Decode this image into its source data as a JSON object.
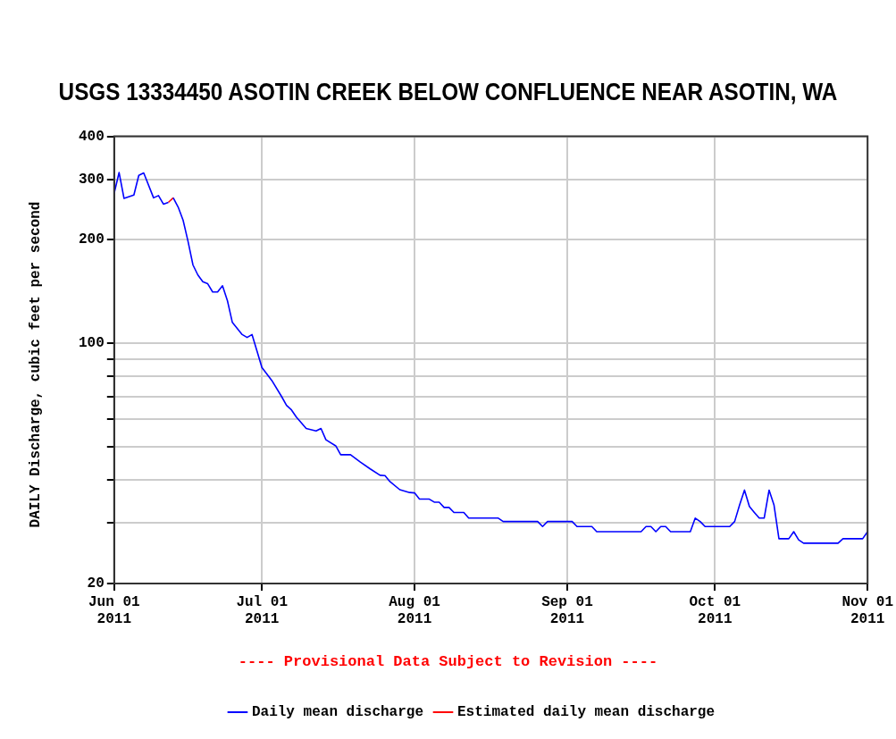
{
  "chart_data": {
    "type": "line",
    "title": "USGS 13334450 ASOTIN CREEK BELOW CONFLUENCE NEAR ASOTIN, WA",
    "ylabel": "DAILY Discharge, cubic feet per second",
    "annotations": [
      "---- Provisional Data Subject to Revision ----"
    ],
    "log": "y",
    "grid": true,
    "legend": "bottom",
    "marker": "none",
    "line_style": "solid",
    "xlim": [
      "2011-06-01",
      "2011-11-01"
    ],
    "xticks": [
      {
        "value": "2011-06-01",
        "label": "Jun 01 2011"
      },
      {
        "value": "2011-07-01",
        "label": "Jul 01 2011"
      },
      {
        "value": "2011-08-01",
        "label": "Aug 01 2011"
      },
      {
        "value": "2011-09-01",
        "label": "Sep 01 2011"
      },
      {
        "value": "2011-10-01",
        "label": "Oct 01 2011"
      },
      {
        "value": "2011-11-01",
        "label": "Nov 01 2011"
      }
    ],
    "ylim": [
      20,
      400
    ],
    "yticks": [
      20,
      {
        "value": 30,
        "label": null
      },
      {
        "value": 40,
        "label": null
      },
      {
        "value": 50,
        "label": null
      },
      {
        "value": 60,
        "label": null
      },
      {
        "value": 70,
        "label": null
      },
      {
        "value": 80,
        "label": null
      },
      {
        "value": 90,
        "label": null
      },
      100,
      200,
      300,
      400
    ],
    "series": [
      {
        "name": "Daily mean discharge",
        "color": "#0000ff",
        "x": [
          "2011-06-01",
          "2011-06-02",
          "2011-06-03",
          "2011-06-05",
          "2011-06-06",
          "2011-06-07",
          "2011-06-09",
          "2011-06-10",
          "2011-06-11",
          "2011-06-12",
          "2011-06-13",
          "2011-06-14",
          "2011-06-15",
          "2011-06-16",
          "2011-06-17",
          "2011-06-18",
          "2011-06-19",
          "2011-06-20",
          "2011-06-21",
          "2011-06-22",
          "2011-06-23",
          "2011-06-24",
          "2011-06-25",
          "2011-06-27",
          "2011-06-28",
          "2011-06-29",
          "2011-06-30",
          "2011-07-01",
          "2011-07-03",
          "2011-07-05",
          "2011-07-06",
          "2011-07-07",
          "2011-07-08",
          "2011-07-10",
          "2011-07-12",
          "2011-07-13",
          "2011-07-14",
          "2011-07-16",
          "2011-07-17",
          "2011-07-19",
          "2011-07-21",
          "2011-07-23",
          "2011-07-25",
          "2011-07-26",
          "2011-07-27",
          "2011-07-29",
          "2011-07-31",
          "2011-08-01",
          "2011-08-02",
          "2011-08-04",
          "2011-08-05",
          "2011-08-06",
          "2011-08-07",
          "2011-08-08",
          "2011-08-09",
          "2011-08-11",
          "2011-08-12",
          "2011-08-18",
          "2011-08-19",
          "2011-08-26",
          "2011-08-27",
          "2011-08-28",
          "2011-09-02",
          "2011-09-03",
          "2011-09-06",
          "2011-09-07",
          "2011-09-16",
          "2011-09-17",
          "2011-09-18",
          "2011-09-19",
          "2011-09-20",
          "2011-09-21",
          "2011-09-22",
          "2011-09-26",
          "2011-09-27",
          "2011-09-28",
          "2011-09-29",
          "2011-10-04",
          "2011-10-05",
          "2011-10-06",
          "2011-10-07",
          "2011-10-08",
          "2011-10-09",
          "2011-10-10",
          "2011-10-11",
          "2011-10-12",
          "2011-10-13",
          "2011-10-14",
          "2011-10-16",
          "2011-10-17",
          "2011-10-18",
          "2011-10-19",
          "2011-10-26",
          "2011-10-27",
          "2011-10-31",
          "2011-11-01"
        ],
        "values": [
          273,
          314,
          264,
          270,
          308,
          313,
          265,
          269,
          254,
          257,
          265,
          249,
          228,
          198,
          169,
          158,
          151,
          149,
          141,
          141,
          147,
          133,
          115,
          106,
          104,
          106,
          95,
          85,
          78,
          70,
          66,
          64,
          61,
          56.5,
          55.6,
          56.5,
          52.4,
          50.3,
          47.4,
          47.4,
          45.1,
          43.1,
          41.3,
          41.2,
          39.6,
          37.5,
          36.8,
          36.7,
          35.2,
          35.2,
          34.5,
          34.5,
          33.3,
          33.3,
          32.2,
          32.2,
          31,
          31,
          30.3,
          30.3,
          29.3,
          30.3,
          30.3,
          29.3,
          29.3,
          28.3,
          28.3,
          29.3,
          29.3,
          28.3,
          29.3,
          29.3,
          28.3,
          28.3,
          31,
          30.3,
          29.3,
          29.3,
          30.3,
          33.8,
          37.4,
          33.5,
          32.2,
          31,
          31,
          37.4,
          33.8,
          27,
          27,
          28.3,
          26.8,
          26.2,
          26.2,
          27,
          27,
          28.3
        ]
      },
      {
        "name": "Estimated daily mean discharge",
        "color": "#ff0000",
        "x": [
          "2011-06-12",
          "2011-06-13"
        ],
        "values": [
          257,
          265
        ]
      }
    ]
  }
}
